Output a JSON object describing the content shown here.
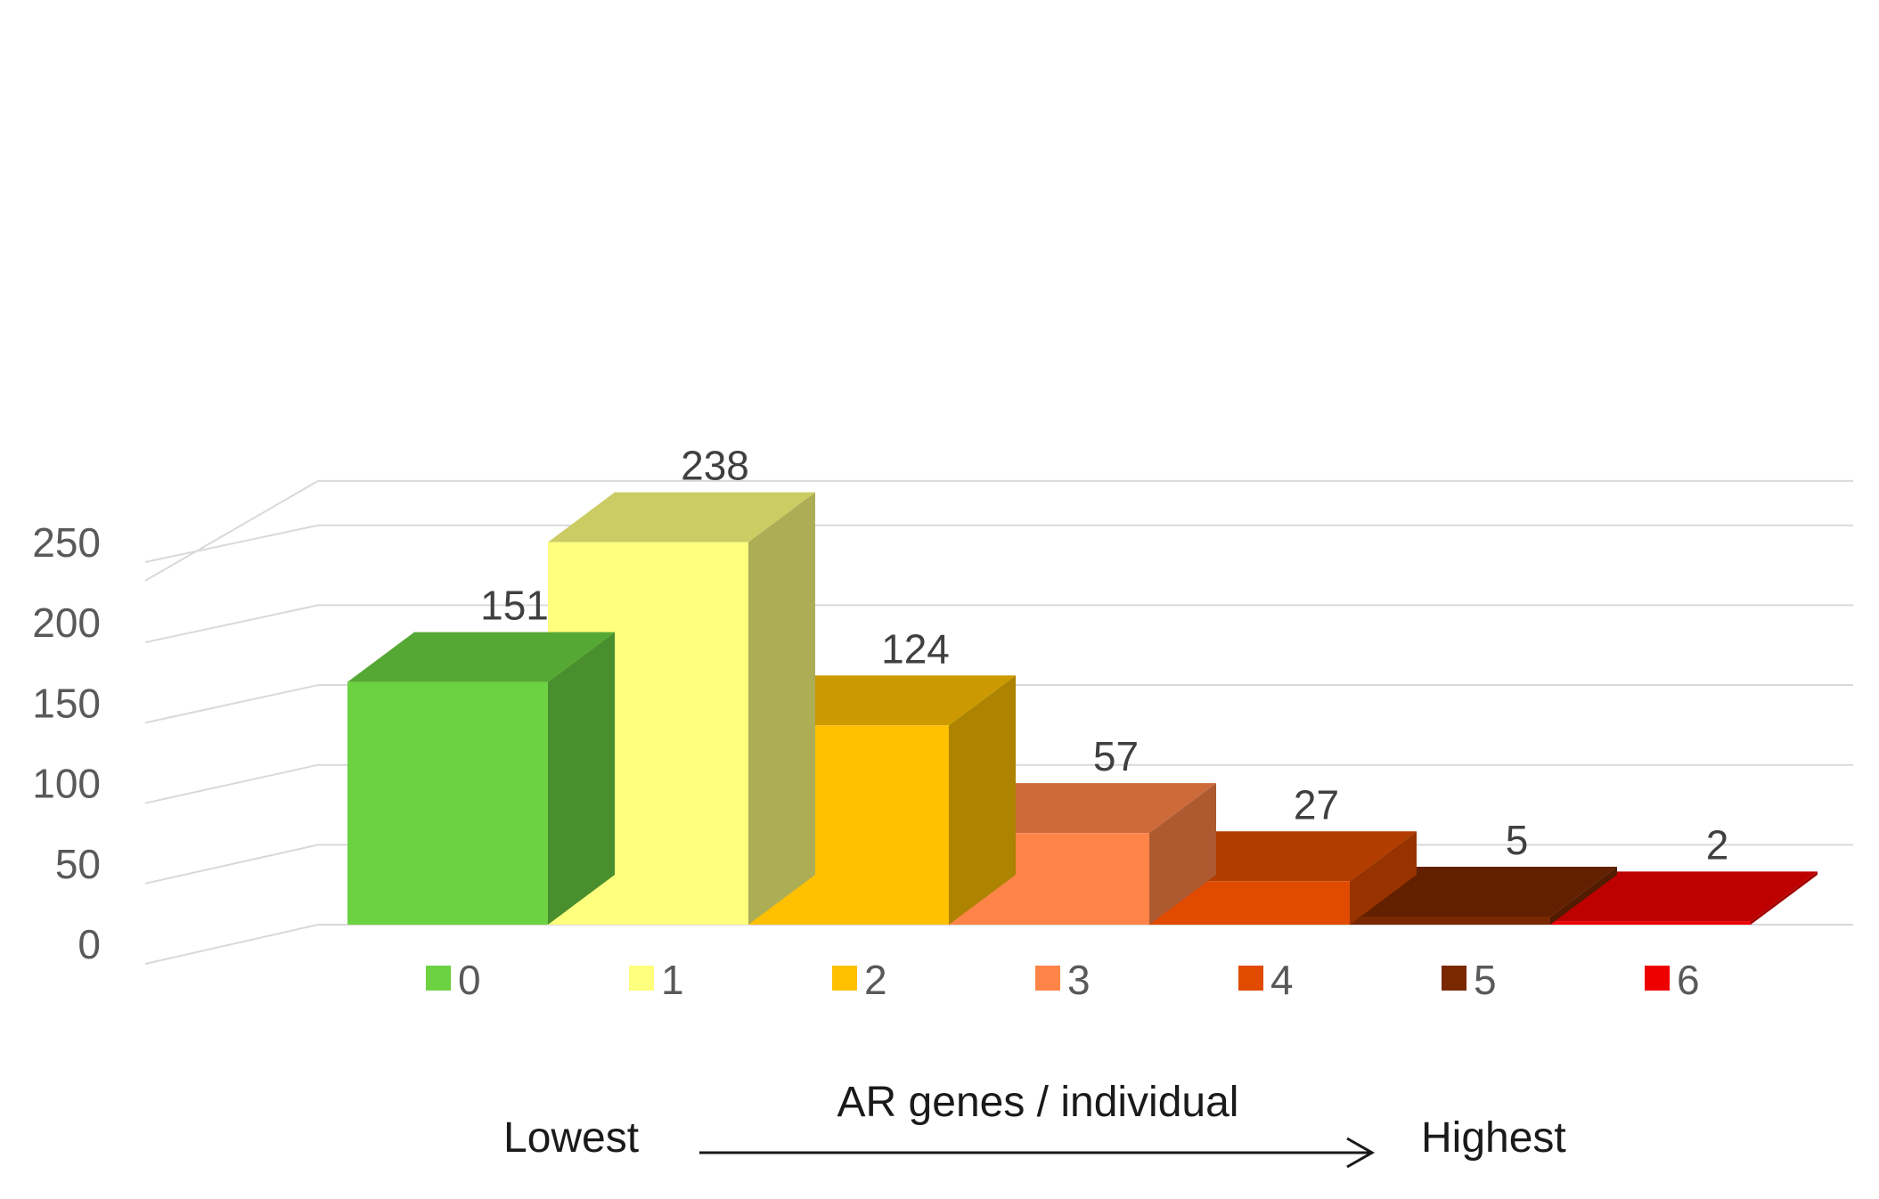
{
  "chart_data": {
    "type": "bar",
    "title": "",
    "categories": [
      "0",
      "1",
      "2",
      "3",
      "4",
      "5",
      "6"
    ],
    "values": [
      151,
      238,
      124,
      57,
      27,
      5,
      2
    ],
    "colors": [
      "#6cd242",
      "#ffff7e",
      "#ffc000",
      "#ff8448",
      "#e04b00",
      "#7a2800",
      "#ee0000"
    ],
    "ylim": [
      0,
      275
    ],
    "yticks": [
      0,
      50,
      100,
      150,
      200,
      250
    ],
    "legend_position": "bottom",
    "grid": true,
    "xlabel": "AR genes / individual",
    "xlabel_left": "Lowest",
    "xlabel_right": "Highest",
    "ylabel": ""
  }
}
